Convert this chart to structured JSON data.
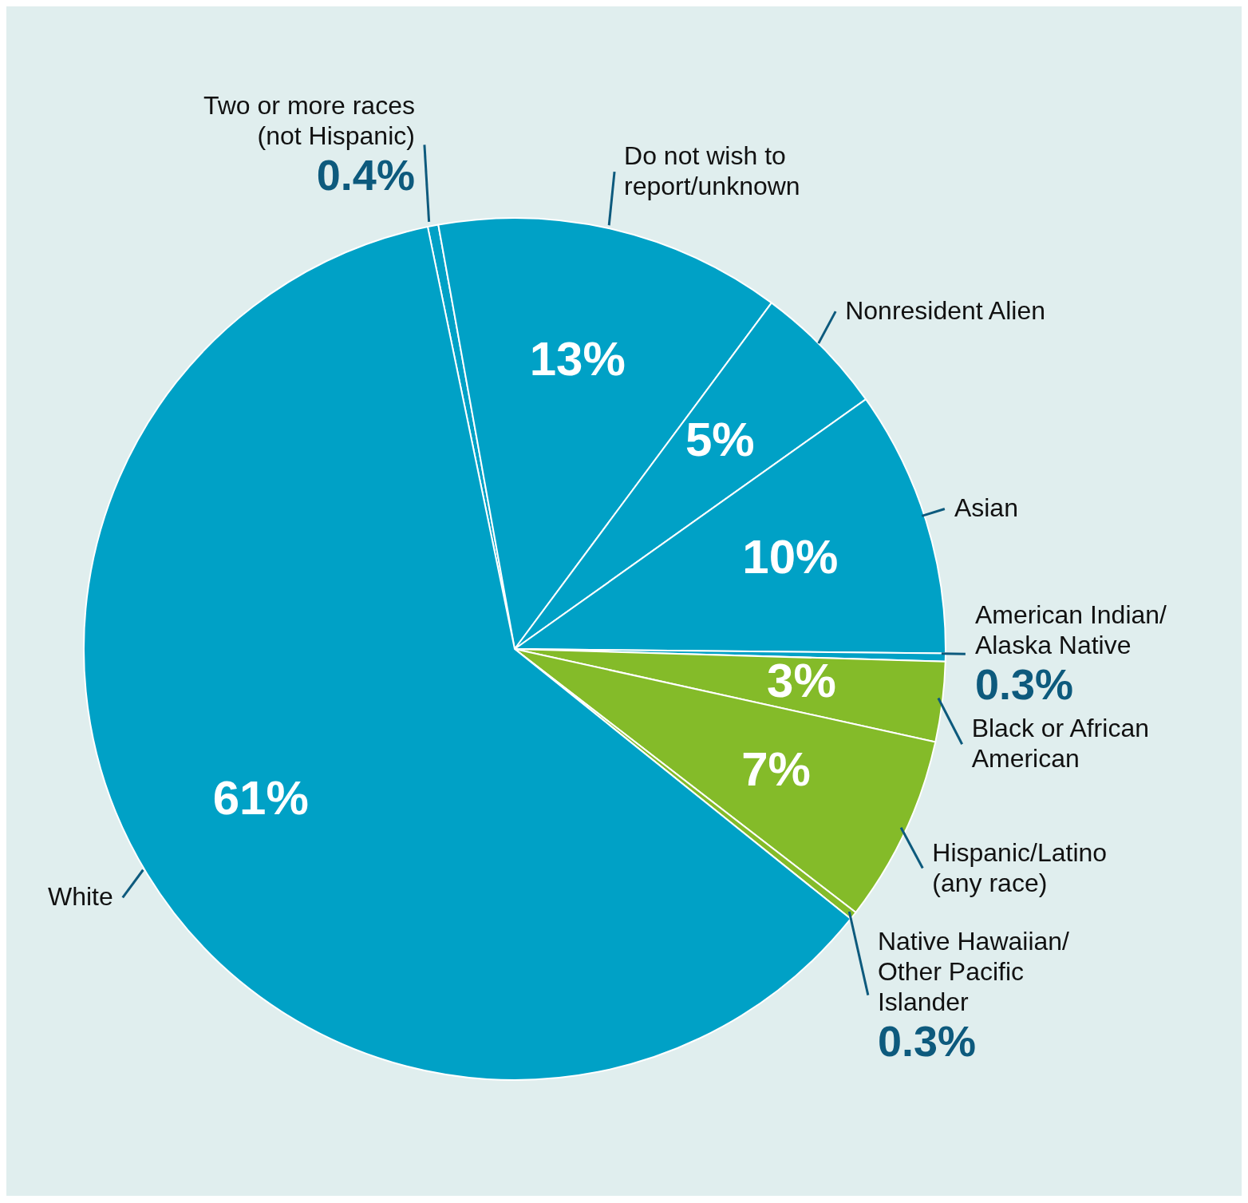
{
  "chart_data": {
    "type": "pie",
    "categories": [
      "Two or more races (not Hispanic)",
      "Do not wish to report/unknown",
      "Nonresident Alien",
      "Asian",
      "American Indian/ Alaska Native",
      "Black or African American",
      "Hispanic/Latino (any race)",
      "Native Hawaiian/ Other Pacific Islander",
      "White"
    ],
    "values": [
      0.4,
      13,
      5,
      10,
      0.3,
      3,
      7,
      0.3,
      61
    ],
    "value_labels": [
      "0.4%",
      "13%",
      "5%",
      "10%",
      "0.3%",
      "3%",
      "7%",
      "0.3%",
      "61%"
    ],
    "colors": [
      "#00a1c6",
      "#00a1c6",
      "#00a1c6",
      "#00a1c6",
      "#00a1c6",
      "#84bb29",
      "#84bb29",
      "#84bb29",
      "#00a1c6"
    ]
  }
}
